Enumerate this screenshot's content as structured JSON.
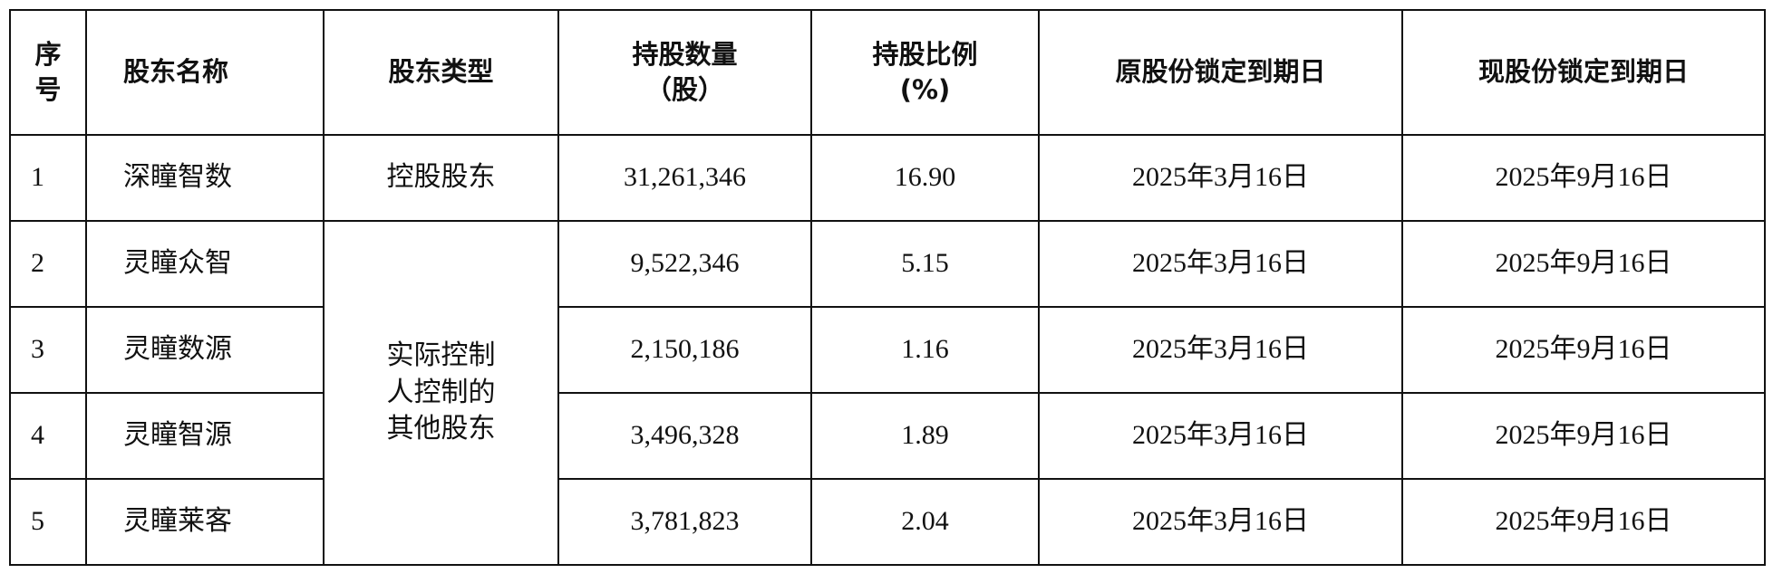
{
  "table": {
    "header": [
      "序\n号",
      "股东名称",
      "股东类型",
      "持股数量\n（股）",
      "持股比例\n(%)",
      "原股份锁定到期日",
      "现股份锁定到期日"
    ],
    "rows": [
      [
        "1",
        "深瞳智数",
        "控股股东",
        "31,261,346",
        "16.90",
        "2025年3月16日",
        "2025年9月16日"
      ],
      [
        "2",
        "灵瞳众智",
        "实际控制\n人控制的\n其他股东",
        "9,522,346",
        "5.15",
        "2025年3月16日",
        "2025年9月16日"
      ],
      [
        "3",
        "灵瞳数源",
        "2,150,186",
        "1.16",
        "2025年3月16日",
        "2025年9月16日"
      ],
      [
        "4",
        "灵瞳智源",
        "3,496,328",
        "1.89",
        "2025年3月16日",
        "2025年9月16日"
      ],
      [
        "5",
        "灵瞳莱客",
        "3,781,823",
        "2.04",
        "2025年3月16日",
        "2025年9月16日"
      ]
    ]
  }
}
